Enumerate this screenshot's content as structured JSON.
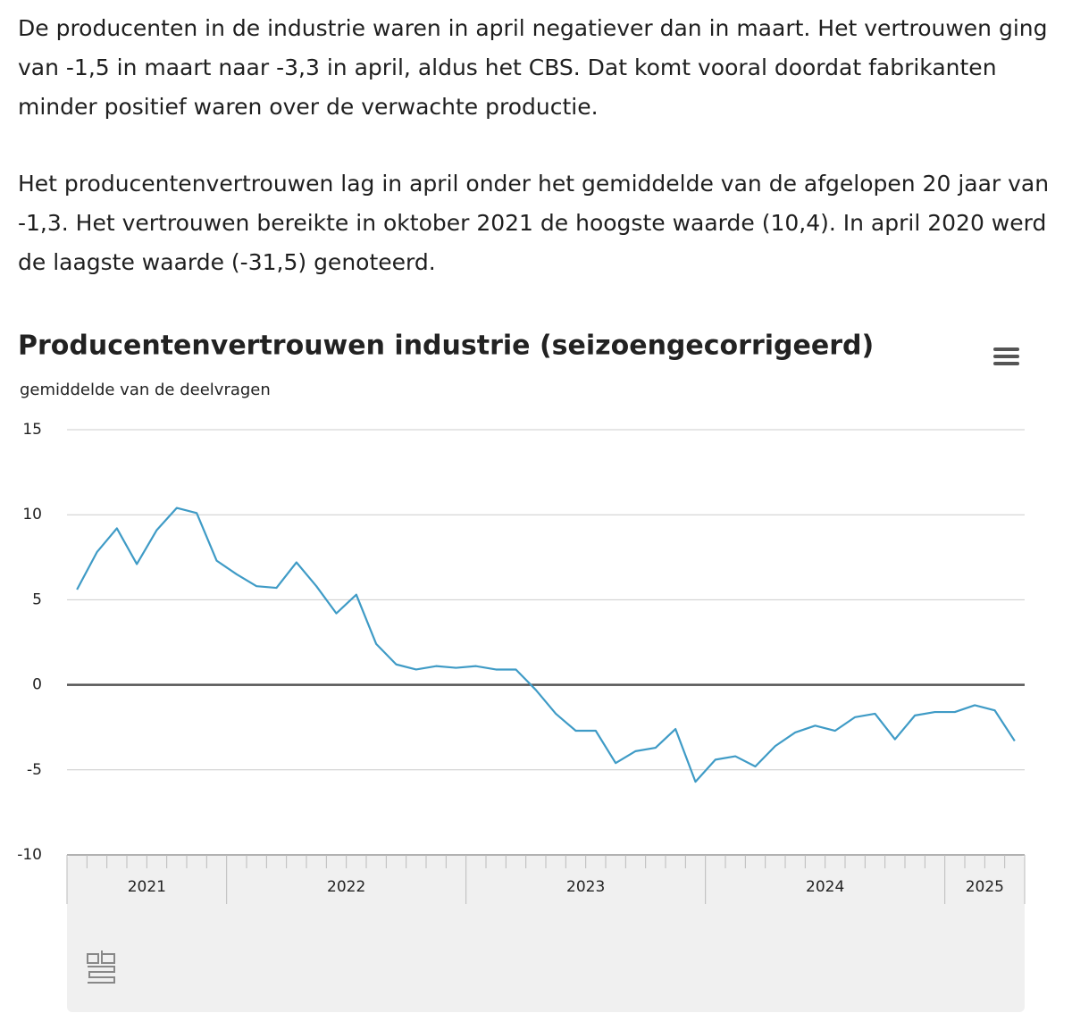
{
  "paragraphs": [
    "De producenten in de industrie waren in april negatiever dan in maart. Het vertrouwen ging van -1,5 in maart naar -3,3 in april, aldus het CBS. Dat komt vooral doordat fabrikanten minder positief waren over de verwachte productie.",
    "Het producentenvertrouwen lag in april onder het gemiddelde van de afgelopen 20 jaar van -1,3. Het vertrouwen bereikte in oktober 2021 de hoogste waarde (10,4). In april 2020 werd de laagste waarde (-31,5) genoteerd."
  ],
  "chart_data": {
    "type": "line",
    "title": "Producentenvertrouwen industrie (seizoengecorrigeerd)",
    "subtitle": "gemiddelde van de deelvragen",
    "year_groups": [
      {
        "label": "2021",
        "months": 8
      },
      {
        "label": "2022",
        "months": 12
      },
      {
        "label": "2023",
        "months": 12
      },
      {
        "label": "2024",
        "months": 12
      },
      {
        "label": "2025",
        "months": 4
      }
    ],
    "series": [
      {
        "color": "#3f9bc6",
        "values": [
          5.6,
          7.8,
          9.2,
          7.1,
          9.1,
          10.4,
          10.1,
          7.3,
          6.5,
          5.8,
          5.7,
          7.2,
          5.8,
          4.2,
          5.3,
          2.4,
          1.2,
          0.9,
          1.1,
          1.0,
          1.1,
          0.9,
          0.9,
          -0.3,
          -1.7,
          -2.7,
          -2.7,
          -4.6,
          -3.9,
          -3.7,
          -2.6,
          -5.7,
          -4.4,
          -4.2,
          -4.8,
          -3.6,
          -2.8,
          -2.4,
          -2.7,
          -1.9,
          -1.7,
          -3.2,
          -1.8,
          -1.6,
          -1.6,
          -1.2,
          -1.5,
          -3.3
        ]
      }
    ],
    "ylim": [
      -10,
      15
    ],
    "yticks": [
      -10,
      -5,
      0,
      5,
      10,
      15
    ],
    "grid": true
  }
}
